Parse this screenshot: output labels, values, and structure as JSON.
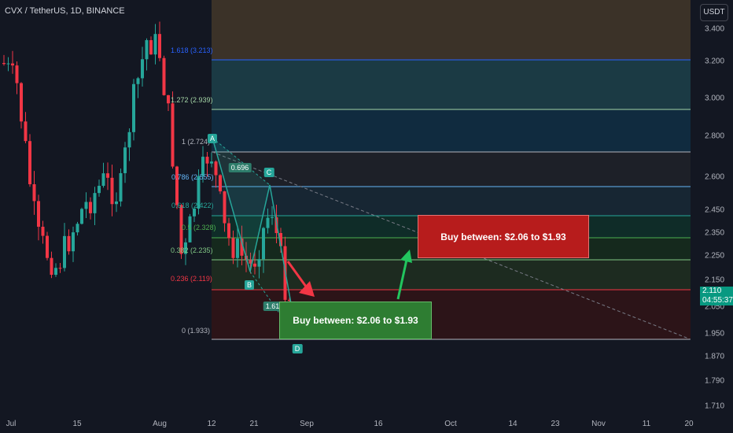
{
  "symbol_header": "CVX / TetherUS, 1D, BINANCE",
  "unit_button": "USDT",
  "price_axis": [
    "3.400",
    "3.200",
    "3.000",
    "2.800",
    "2.600",
    "2.450",
    "2.350",
    "2.250",
    "2.150",
    "2.050",
    "1.950",
    "1.870",
    "1.790",
    "1.710"
  ],
  "time_axis": [
    "Jul",
    "15",
    "Aug",
    "12",
    "21",
    "Sep",
    "16",
    "Oct",
    "14",
    "23",
    "Nov",
    "11",
    "20"
  ],
  "last_price": "2.110",
  "countdown": "04:55:37",
  "fib_levels": [
    {
      "label": "1.618 (3.213)",
      "color": "#2962ff"
    },
    {
      "label": "1.272 (2.939)",
      "color": "#a5d6a7"
    },
    {
      "label": "1 (2.724)",
      "color": "#b2b5be"
    },
    {
      "label": "0.786 (2.555)",
      "color": "#64b5f6"
    },
    {
      "label": "0.618 (2.422)",
      "color": "#26a69a"
    },
    {
      "label": "0.5 (2.328)",
      "color": "#4caf50"
    },
    {
      "label": "0.382 (2.235)",
      "color": "#81c784"
    },
    {
      "label": "0.236 (2.119)",
      "color": "#f23645"
    },
    {
      "label": "0 (1.933)",
      "color": "#b2b5be"
    }
  ],
  "pattern_points": [
    "A",
    "B",
    "C",
    "D"
  ],
  "ratio_labels": [
    "0.696",
    "1.618"
  ],
  "annotations": [
    {
      "text": "Buy between: $2.06 to $1.93"
    },
    {
      "text": "Buy between: $2.06 to $1.93"
    }
  ],
  "colors": {
    "up": "#26a69a",
    "down": "#f23645",
    "background": "#131722"
  }
}
